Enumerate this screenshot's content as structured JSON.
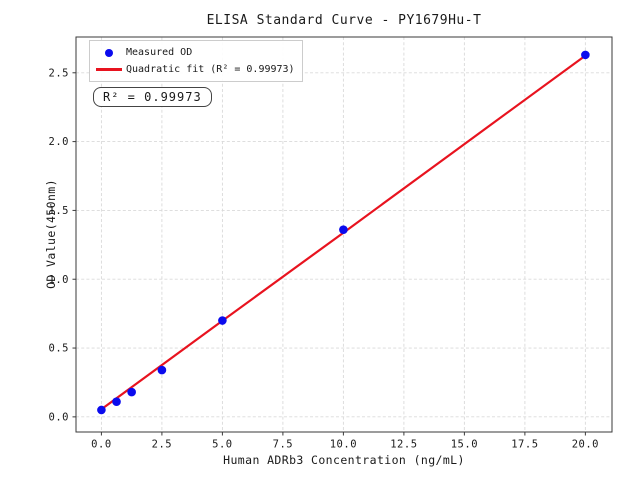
{
  "chart_data": {
    "type": "scatter",
    "title": "ELISA Standard Curve - PY1679Hu-T",
    "xlabel": "Human ADRb3 Concentration (ng/mL)",
    "ylabel": "OD Value(450nm)",
    "xlim": [
      -1.05,
      21.1
    ],
    "ylim": [
      -0.11,
      2.76
    ],
    "grid": true,
    "legend_position": "upper left",
    "xticks": {
      "values": [
        0,
        2.5,
        5,
        7.5,
        10,
        12.5,
        15,
        17.5,
        20
      ],
      "labels": [
        "0.0",
        "2.5",
        "5.0",
        "7.5",
        "10.0",
        "12.5",
        "15.0",
        "17.5",
        "20.0"
      ]
    },
    "yticks": {
      "values": [
        0,
        0.5,
        1,
        1.5,
        2,
        2.5
      ],
      "labels": [
        "0.0",
        "0.5",
        "1.0",
        "1.5",
        "2.0",
        "2.5"
      ]
    },
    "series": [
      {
        "name": "Quadratic fit",
        "type": "line",
        "color": "#e8131f",
        "x": [
          0,
          5,
          10,
          15,
          20
        ],
        "y": [
          0.055,
          0.698,
          1.338,
          1.982,
          2.625
        ]
      },
      {
        "name": "Measured OD",
        "type": "scatter",
        "color": "#0b0bee",
        "x": [
          0,
          0.625,
          1.25,
          2.5,
          5,
          10,
          20
        ],
        "y": [
          0.05,
          0.11,
          0.18,
          0.34,
          0.7,
          1.36,
          2.63
        ]
      }
    ],
    "legend": [
      {
        "label": "Measured OD",
        "marker": "dot",
        "color": "#0b0bee"
      },
      {
        "label": "Quadratic fit (R² = 0.99973)",
        "marker": "line",
        "color": "#e8131f"
      }
    ],
    "annotation": "R² = 0.99973",
    "r_squared": 0.99973,
    "colors": {
      "background": "#ffffff",
      "grid": "#d9d9d9",
      "spine": "#3a3a3a",
      "tick": "#3a3a3a",
      "text": "#1a1a1a"
    }
  }
}
